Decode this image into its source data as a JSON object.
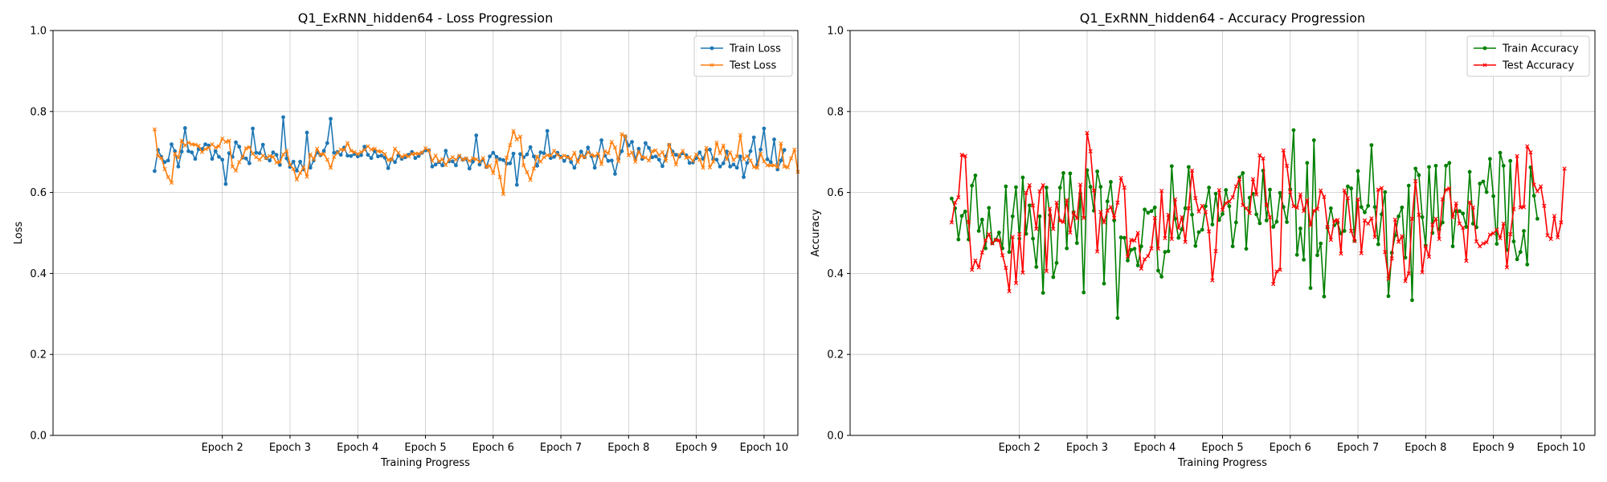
{
  "chart_data": [
    {
      "type": "line",
      "title": "Q1_ExRNN_hidden64 - Loss Progression",
      "xlabel": "Training Progress",
      "ylabel": "Loss",
      "ylim": [
        0,
        1
      ],
      "yticks": [
        "0.0",
        "0.2",
        "0.4",
        "0.6",
        "0.8",
        "1.0"
      ],
      "xlim": [
        -30,
        190
      ],
      "xtick_positions": [
        20,
        40,
        60,
        80,
        100,
        120,
        140,
        160,
        180
      ],
      "xtick_labels": [
        "Epoch 2",
        "Epoch 3",
        "Epoch 4",
        "Epoch 5",
        "Epoch 6",
        "Epoch 7",
        "Epoch 8",
        "Epoch 9",
        "Epoch 10"
      ],
      "grid": true,
      "legend": "top-right",
      "series": [
        {
          "name": "Train Loss",
          "color": "#1f77b4",
          "marker": "circle",
          "values": [
            0.653,
            0.705,
            0.688,
            0.675,
            0.679,
            0.719,
            0.702,
            0.664,
            0.701,
            0.759,
            0.702,
            0.699,
            0.683,
            0.707,
            0.707,
            0.719,
            0.716,
            0.683,
            0.702,
            0.688,
            0.681,
            0.621,
            0.697,
            0.688,
            0.724,
            0.713,
            0.686,
            0.684,
            0.672,
            0.758,
            0.698,
            0.697,
            0.718,
            0.685,
            0.679,
            0.699,
            0.693,
            0.668,
            0.786,
            0.684,
            0.663,
            0.676,
            0.654,
            0.676,
            0.657,
            0.748,
            0.661,
            0.679,
            0.699,
            0.692,
            0.703,
            0.722,
            0.782,
            0.698,
            0.7,
            0.693,
            0.711,
            0.691,
            0.69,
            0.695,
            0.689,
            0.692,
            0.713,
            0.693,
            0.685,
            0.702,
            0.689,
            0.691,
            0.686,
            0.66,
            0.682,
            0.675,
            0.691,
            0.683,
            0.687,
            0.693,
            0.7,
            0.685,
            0.69,
            0.698,
            0.704,
            0.704,
            0.664,
            0.669,
            0.675,
            0.667,
            0.703,
            0.677,
            0.677,
            0.667,
            0.689,
            0.681,
            0.683,
            0.659,
            0.676,
            0.741,
            0.669,
            0.681,
            0.663,
            0.689,
            0.698,
            0.688,
            0.682,
            0.68,
            0.671,
            0.672,
            0.696,
            0.619,
            0.695,
            0.687,
            0.694,
            0.712,
            0.689,
            0.666,
            0.699,
            0.697,
            0.752,
            0.685,
            0.688,
            0.698,
            0.688,
            0.678,
            0.688,
            0.675,
            0.661,
            0.679,
            0.701,
            0.687,
            0.711,
            0.69,
            0.661,
            0.691,
            0.729,
            0.691,
            0.678,
            0.679,
            0.646,
            0.684,
            0.702,
            0.738,
            0.716,
            0.725,
            0.681,
            0.708,
            0.683,
            0.722,
            0.71,
            0.687,
            0.689,
            0.681,
            0.665,
            0.689,
            0.717,
            0.701,
            0.693,
            0.689,
            0.697,
            0.692,
            0.673,
            0.674,
            0.685,
            0.699,
            0.683,
            0.705,
            0.706,
            0.683,
            0.681,
            0.664,
            0.672,
            0.701,
            0.664,
            0.669,
            0.661,
            0.689,
            0.638,
            0.673,
            0.702,
            0.736,
            0.669,
            0.706,
            0.758,
            0.682,
            0.675,
            0.731,
            0.657,
            0.679,
            0.705
          ]
        },
        {
          "name": "Test Loss",
          "color": "#ff7f0e",
          "marker": "x",
          "values": [
            0.756,
            0.69,
            0.685,
            0.658,
            0.638,
            0.624,
            0.696,
            0.686,
            0.728,
            0.716,
            0.723,
            0.719,
            0.718,
            0.715,
            0.7,
            0.707,
            0.71,
            0.719,
            0.711,
            0.714,
            0.733,
            0.725,
            0.728,
            0.664,
            0.654,
            0.675,
            0.688,
            0.709,
            0.712,
            0.696,
            0.687,
            0.681,
            0.691,
            0.685,
            0.69,
            0.688,
            0.674,
            0.675,
            0.694,
            0.703,
            0.669,
            0.658,
            0.632,
            0.648,
            0.663,
            0.639,
            0.694,
            0.682,
            0.708,
            0.694,
            0.695,
            0.681,
            0.661,
            0.688,
            0.698,
            0.706,
            0.705,
            0.722,
            0.703,
            0.7,
            0.695,
            0.7,
            0.705,
            0.714,
            0.706,
            0.708,
            0.702,
            0.701,
            0.695,
            0.68,
            0.681,
            0.708,
            0.698,
            0.688,
            0.692,
            0.689,
            0.695,
            0.696,
            0.696,
            0.699,
            0.709,
            0.704,
            0.678,
            0.691,
            0.677,
            0.682,
            0.668,
            0.681,
            0.687,
            0.681,
            0.691,
            0.681,
            0.684,
            0.678,
            0.684,
            0.682,
            0.676,
            0.685,
            0.663,
            0.666,
            0.648,
            0.68,
            0.638,
            0.596,
            0.686,
            0.717,
            0.752,
            0.731,
            0.738,
            0.667,
            0.65,
            0.631,
            0.659,
            0.689,
            0.676,
            0.687,
            0.692,
            0.691,
            0.703,
            0.693,
            0.686,
            0.691,
            0.687,
            0.683,
            0.698,
            0.675,
            0.691,
            0.687,
            0.699,
            0.693,
            0.69,
            0.696,
            0.67,
            0.702,
            0.697,
            0.725,
            0.711,
            0.677,
            0.744,
            0.739,
            0.692,
            0.699,
            0.676,
            0.701,
            0.687,
            0.686,
            0.679,
            0.702,
            0.704,
            0.692,
            0.7,
            0.678,
            0.718,
            0.694,
            0.669,
            0.693,
            0.703,
            0.686,
            0.687,
            0.678,
            0.694,
            0.681,
            0.661,
            0.71,
            0.662,
            0.676,
            0.723,
            0.697,
            0.716,
            0.682,
            0.699,
            0.68,
            0.689,
            0.742,
            0.682,
            0.69,
            0.679,
            0.663,
            0.661,
            0.696,
            0.677,
            0.667,
            0.667,
            0.667,
            0.663,
            0.721,
            0.664,
            0.662,
            0.684,
            0.706,
            0.651
          ]
        }
      ]
    },
    {
      "type": "line",
      "title": "Q1_ExRNN_hidden64 - Accuracy Progression",
      "xlabel": "Training Progress",
      "ylabel": "Accuracy",
      "ylim": [
        0,
        1
      ],
      "yticks": [
        "0.0",
        "0.2",
        "0.4",
        "0.6",
        "0.8",
        "1.0"
      ],
      "xlim": [
        -30,
        190
      ],
      "xtick_positions": [
        20,
        40,
        60,
        80,
        100,
        120,
        140,
        160,
        180
      ],
      "xtick_labels": [
        "Epoch 2",
        "Epoch 3",
        "Epoch 4",
        "Epoch 5",
        "Epoch 6",
        "Epoch 7",
        "Epoch 8",
        "Epoch 9",
        "Epoch 10"
      ],
      "grid": true,
      "legend": "top-right",
      "series": [
        {
          "name": "Train Accuracy",
          "color": "#008000",
          "marker": "circle",
          "values": [
            0.585,
            0.561,
            0.484,
            0.542,
            0.553,
            0.484,
            0.617,
            0.642,
            0.505,
            0.533,
            0.462,
            0.562,
            0.475,
            0.483,
            0.501,
            0.462,
            0.615,
            0.453,
            0.541,
            0.613,
            0.486,
            0.637,
            0.498,
            0.568,
            0.486,
            0.416,
            0.541,
            0.352,
            0.612,
            0.544,
            0.391,
            0.426,
            0.612,
            0.648,
            0.462,
            0.647,
            0.551,
            0.475,
            0.597,
            0.353,
            0.655,
            0.614,
            0.555,
            0.652,
            0.614,
            0.375,
            0.578,
            0.626,
            0.531,
            0.29,
            0.489,
            0.488,
            0.432,
            0.458,
            0.461,
            0.42,
            0.467,
            0.558,
            0.55,
            0.554,
            0.563,
            0.407,
            0.392,
            0.453,
            0.455,
            0.665,
            0.535,
            0.488,
            0.509,
            0.561,
            0.663,
            0.545,
            0.468,
            0.502,
            0.508,
            0.566,
            0.612,
            0.521,
            0.597,
            0.532,
            0.547,
            0.606,
            0.566,
            0.467,
            0.526,
            0.637,
            0.648,
            0.461,
            0.587,
            0.597,
            0.546,
            0.524,
            0.654,
            0.531,
            0.607,
            0.515,
            0.528,
            0.599,
            0.564,
            0.527,
            0.608,
            0.754,
            0.446,
            0.511,
            0.434,
            0.673,
            0.364,
            0.729,
            0.445,
            0.474,
            0.343,
            0.513,
            0.561,
            0.519,
            0.525,
            0.499,
            0.505,
            0.615,
            0.61,
            0.481,
            0.653,
            0.564,
            0.551,
            0.567,
            0.717,
            0.564,
            0.472,
            0.546,
            0.601,
            0.344,
            0.451,
            0.494,
            0.541,
            0.563,
            0.439,
            0.617,
            0.334,
            0.659,
            0.643,
            0.539,
            0.469,
            0.663,
            0.5,
            0.666,
            0.509,
            0.526,
            0.666,
            0.673,
            0.467,
            0.554,
            0.554,
            0.548,
            0.515,
            0.651,
            0.523,
            0.514,
            0.622,
            0.627,
            0.601,
            0.683,
            0.591,
            0.473,
            0.698,
            0.666,
            0.458,
            0.678,
            0.479,
            0.435,
            0.453,
            0.505,
            0.422,
            0.662,
            0.592,
            0.535
          ]
        },
        {
          "name": "Test Accuracy",
          "color": "#ff0000",
          "marker": "x",
          "values": [
            0.526,
            0.575,
            0.588,
            0.693,
            0.69,
            0.527,
            0.409,
            0.432,
            0.415,
            0.452,
            0.482,
            0.497,
            0.474,
            0.483,
            0.482,
            0.445,
            0.414,
            0.356,
            0.49,
            0.376,
            0.497,
            0.402,
            0.599,
            0.618,
            0.568,
            0.51,
            0.603,
            0.618,
            0.406,
            0.56,
            0.51,
            0.575,
            0.53,
            0.527,
            0.581,
            0.501,
            0.55,
            0.536,
            0.619,
            0.537,
            0.747,
            0.702,
            0.605,
            0.454,
            0.552,
            0.526,
            0.555,
            0.564,
            0.537,
            0.575,
            0.636,
            0.612,
            0.442,
            0.483,
            0.481,
            0.5,
            0.412,
            0.435,
            0.443,
            0.462,
            0.537,
            0.461,
            0.604,
            0.487,
            0.545,
            0.485,
            0.583,
            0.512,
            0.539,
            0.478,
            0.561,
            0.654,
            0.586,
            0.553,
            0.567,
            0.552,
            0.504,
            0.383,
            0.455,
            0.606,
            0.557,
            0.574,
            0.578,
            0.588,
            0.615,
            0.633,
            0.569,
            0.561,
            0.549,
            0.633,
            0.595,
            0.692,
            0.684,
            0.57,
            0.539,
            0.374,
            0.405,
            0.409,
            0.704,
            0.666,
            0.601,
            0.566,
            0.562,
            0.595,
            0.554,
            0.581,
            0.519,
            0.555,
            0.559,
            0.605,
            0.589,
            0.515,
            0.483,
            0.53,
            0.532,
            0.449,
            0.605,
            0.586,
            0.505,
            0.48,
            0.583,
            0.45,
            0.531,
            0.523,
            0.536,
            0.49,
            0.607,
            0.611,
            0.453,
            0.387,
            0.437,
            0.533,
            0.478,
            0.492,
            0.381,
            0.4,
            0.535,
            0.628,
            0.545,
            0.403,
            0.467,
            0.441,
            0.52,
            0.535,
            0.485,
            0.583,
            0.607,
            0.61,
            0.539,
            0.573,
            0.523,
            0.513,
            0.431,
            0.576,
            0.563,
            0.479,
            0.467,
            0.474,
            0.477,
            0.496,
            0.499,
            0.508,
            0.487,
            0.523,
            0.415,
            0.497,
            0.559,
            0.69,
            0.563,
            0.564,
            0.714,
            0.699,
            0.619,
            0.603,
            0.615,
            0.567,
            0.494,
            0.485,
            0.542,
            0.489,
            0.526,
            0.659
          ]
        }
      ]
    }
  ]
}
